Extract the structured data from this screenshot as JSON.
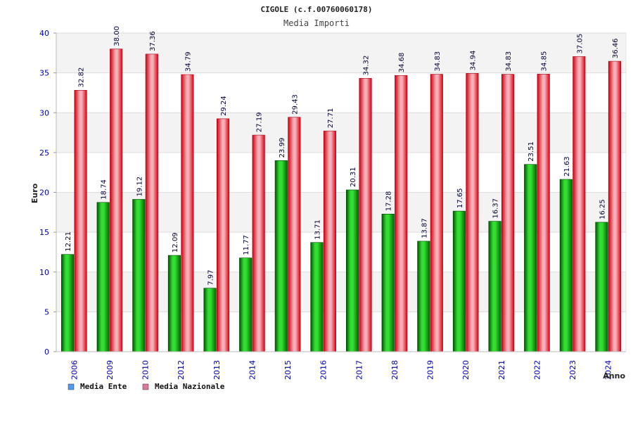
{
  "chart_data": {
    "type": "bar",
    "title": "CIGOLE (c.f.00760060178)",
    "subtitle": "Media Importi",
    "xlabel": "Anno",
    "ylabel": "Euro",
    "ylim": [
      0,
      40
    ],
    "yticks": [
      0,
      5,
      10,
      15,
      20,
      25,
      30,
      35,
      40
    ],
    "categories": [
      "2006",
      "2009",
      "2010",
      "2012",
      "2013",
      "2014",
      "2015",
      "2016",
      "2017",
      "2018",
      "2019",
      "2020",
      "2021",
      "2022",
      "2023",
      "2024"
    ],
    "series": [
      {
        "name": "Media Ente",
        "color": "#00aa00",
        "values": [
          12.21,
          18.74,
          19.12,
          12.09,
          7.97,
          11.77,
          23.99,
          13.71,
          20.31,
          17.28,
          13.87,
          17.65,
          16.37,
          23.51,
          21.63,
          16.25
        ],
        "labels": [
          "12.21",
          "18.74",
          "19.12",
          "12.09",
          "7.97",
          "11.77",
          "23.99",
          "13.71",
          "20.31",
          "17.28",
          "13.87",
          "17.65",
          "16.37",
          "23.51",
          "21.63",
          "16.25"
        ]
      },
      {
        "name": "Media Nazionale",
        "color": "#ee1122",
        "values": [
          32.82,
          38.0,
          37.36,
          34.79,
          29.24,
          27.19,
          29.43,
          27.71,
          34.32,
          34.68,
          34.83,
          34.94,
          34.83,
          34.85,
          37.05,
          36.46
        ],
        "labels": [
          "32.82",
          "38.00",
          "37.36",
          "34.79",
          "29.24",
          "27.19",
          "29.43",
          "27.71",
          "34.32",
          "34.68",
          "34.83",
          "34.94",
          "34.83",
          "34.85",
          "37.05",
          "36.46"
        ]
      }
    ],
    "legend": [
      {
        "label": "Media Ente",
        "color": "#5599ee"
      },
      {
        "label": "Media Nazionale",
        "color": "#dd7799"
      }
    ],
    "grid": true
  }
}
